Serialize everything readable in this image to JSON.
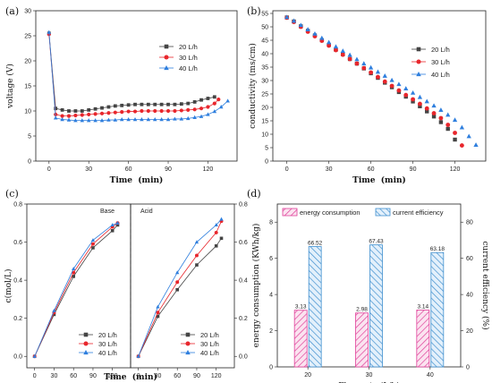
{
  "panels": {
    "a": "(a)",
    "b": "(b)",
    "c": "(c)",
    "d": "(d)"
  },
  "colors": {
    "s20": "#444444",
    "s30": "#e8262c",
    "s40": "#2f7fde",
    "bar_energy": "#e0409a",
    "bar_current": "#3f8fcf"
  },
  "chart_data": [
    {
      "id": "a",
      "type": "line",
      "xlabel": "Time  (min)",
      "ylabel": "voltage (V)",
      "xlim": [
        -10,
        142
      ],
      "ylim": [
        0,
        30
      ],
      "xticks": [
        "0",
        "30",
        "60",
        "90",
        "120"
      ],
      "yticks": [
        "0",
        "5",
        "10",
        "15",
        "20",
        "25",
        "30"
      ],
      "legend": "right",
      "series": [
        {
          "name": "20 L/h",
          "marker": "square",
          "x": [
            0,
            5,
            10,
            15,
            20,
            25,
            30,
            35,
            40,
            45,
            50,
            55,
            60,
            65,
            70,
            75,
            80,
            85,
            90,
            95,
            100,
            105,
            110,
            115,
            120,
            125
          ],
          "y": [
            25.5,
            10.5,
            10.2,
            10.0,
            10.0,
            10.0,
            10.2,
            10.4,
            10.6,
            10.8,
            11.0,
            11.1,
            11.2,
            11.3,
            11.3,
            11.3,
            11.3,
            11.3,
            11.3,
            11.3,
            11.4,
            11.5,
            11.8,
            12.2,
            12.5,
            12.8
          ]
        },
        {
          "name": "30 L/h",
          "marker": "circle",
          "x": [
            0,
            5,
            10,
            15,
            20,
            25,
            30,
            35,
            40,
            45,
            50,
            55,
            60,
            65,
            70,
            75,
            80,
            85,
            90,
            95,
            100,
            105,
            110,
            115,
            120,
            125,
            128
          ],
          "y": [
            25.3,
            9.3,
            9.0,
            9.0,
            9.1,
            9.2,
            9.3,
            9.4,
            9.5,
            9.6,
            9.7,
            9.8,
            9.9,
            9.9,
            10.0,
            10.0,
            10.0,
            10.0,
            10.0,
            10.0,
            10.1,
            10.2,
            10.3,
            10.5,
            10.8,
            11.5,
            12.3
          ]
        },
        {
          "name": "40 L/h",
          "marker": "triangle",
          "x": [
            0,
            5,
            10,
            15,
            20,
            25,
            30,
            35,
            40,
            45,
            50,
            55,
            60,
            65,
            70,
            75,
            80,
            85,
            90,
            95,
            100,
            105,
            110,
            115,
            120,
            125,
            130,
            135
          ],
          "y": [
            25.7,
            8.6,
            8.3,
            8.2,
            8.1,
            8.1,
            8.1,
            8.1,
            8.1,
            8.2,
            8.2,
            8.3,
            8.3,
            8.3,
            8.3,
            8.3,
            8.3,
            8.3,
            8.3,
            8.4,
            8.4,
            8.5,
            8.7,
            8.9,
            9.3,
            9.9,
            10.8,
            12.0
          ]
        }
      ]
    },
    {
      "id": "b",
      "type": "scatter",
      "xlabel": "Time  (min)",
      "ylabel": "conductivity (ms/cm)",
      "xlim": [
        -10,
        142
      ],
      "ylim": [
        0,
        56
      ],
      "xticks": [
        "0",
        "30",
        "60",
        "90",
        "120"
      ],
      "yticks": [
        "0",
        "5",
        "10",
        "15",
        "20",
        "25",
        "30",
        "35",
        "40",
        "45",
        "50",
        "55"
      ],
      "legend": "top-right",
      "series": [
        {
          "name": "20 L/h",
          "marker": "square",
          "x": [
            0,
            5,
            10,
            15,
            20,
            25,
            30,
            35,
            40,
            45,
            50,
            55,
            60,
            65,
            70,
            75,
            80,
            85,
            90,
            95,
            100,
            105,
            110,
            115,
            120
          ],
          "y": [
            53.5,
            52.0,
            50.2,
            48.5,
            46.8,
            45.0,
            43.3,
            41.5,
            39.8,
            38.0,
            36.3,
            34.5,
            32.7,
            31.0,
            29.2,
            27.5,
            25.7,
            24.0,
            22.2,
            20.4,
            18.5,
            16.6,
            14.5,
            12.0,
            8.0
          ]
        },
        {
          "name": "30 L/h",
          "marker": "circle",
          "x": [
            0,
            5,
            10,
            15,
            20,
            25,
            30,
            35,
            40,
            45,
            50,
            55,
            60,
            65,
            70,
            75,
            80,
            85,
            90,
            95,
            100,
            105,
            110,
            115,
            120,
            125
          ],
          "y": [
            53.4,
            51.8,
            50.0,
            48.2,
            46.5,
            44.8,
            43.0,
            41.3,
            39.6,
            38.0,
            36.3,
            34.6,
            33.0,
            31.3,
            29.6,
            28.0,
            26.3,
            24.6,
            23.0,
            21.3,
            19.6,
            17.8,
            16.0,
            13.5,
            10.5,
            5.8
          ]
        },
        {
          "name": "40 L/h",
          "marker": "triangle",
          "x": [
            0,
            5,
            10,
            15,
            20,
            25,
            30,
            35,
            40,
            45,
            50,
            55,
            60,
            65,
            70,
            75,
            80,
            85,
            90,
            95,
            100,
            105,
            110,
            115,
            120,
            125,
            130,
            135
          ],
          "y": [
            53.6,
            52.2,
            50.6,
            49.0,
            47.4,
            45.8,
            44.2,
            42.6,
            41.0,
            39.5,
            37.9,
            36.3,
            34.8,
            33.2,
            31.7,
            30.1,
            28.6,
            27.0,
            25.4,
            23.8,
            22.2,
            20.6,
            19.0,
            17.2,
            15.3,
            12.5,
            9.2,
            6.0
          ]
        }
      ]
    },
    {
      "id": "c",
      "type": "line",
      "xlabel": "Time  (min)",
      "ylabel": "c(mol/L)",
      "left": {
        "title": "Base",
        "xlim": [
          -12,
          148
        ],
        "ylim": [
          -0.06,
          0.8
        ],
        "xticks": [
          "0",
          "30",
          "60",
          "90",
          "120"
        ],
        "yticks": [
          "0.0",
          "0.2",
          "0.4",
          "0.6",
          "0.8"
        ],
        "series": [
          {
            "name": "20 L/h",
            "marker": "square",
            "x": [
              0,
              30,
              60,
              90,
              120,
              128
            ],
            "y": [
              0.0,
              0.22,
              0.42,
              0.57,
              0.66,
              0.69
            ]
          },
          {
            "name": "30 L/h",
            "marker": "circle",
            "x": [
              0,
              30,
              60,
              90,
              120,
              128
            ],
            "y": [
              0.0,
              0.23,
              0.44,
              0.59,
              0.68,
              0.7
            ]
          },
          {
            "name": "40 L/h",
            "marker": "triangle",
            "x": [
              0,
              30,
              60,
              90,
              120,
              128
            ],
            "y": [
              0.0,
              0.24,
              0.46,
              0.61,
              0.69,
              0.7
            ]
          }
        ]
      },
      "right": {
        "title": "Acid",
        "xlim": [
          -12,
          148
        ],
        "ylim": [
          -0.06,
          0.8
        ],
        "xticks": [
          "0",
          "30",
          "60",
          "90",
          "120"
        ],
        "yticks": [
          "0.0",
          "0.2",
          "0.4",
          "0.6",
          "0.8"
        ],
        "series": [
          {
            "name": "20 L/h",
            "marker": "square",
            "x": [
              0,
              30,
              60,
              90,
              120,
              128
            ],
            "y": [
              0.0,
              0.21,
              0.35,
              0.48,
              0.58,
              0.62
            ]
          },
          {
            "name": "30 L/h",
            "marker": "circle",
            "x": [
              0,
              30,
              60,
              90,
              120,
              128
            ],
            "y": [
              0.0,
              0.23,
              0.39,
              0.53,
              0.65,
              0.71
            ]
          },
          {
            "name": "40 L/h",
            "marker": "triangle",
            "x": [
              0,
              30,
              60,
              90,
              120,
              128
            ],
            "y": [
              0.0,
              0.26,
              0.44,
              0.6,
              0.69,
              0.72
            ]
          }
        ]
      }
    },
    {
      "id": "d",
      "type": "bar",
      "xlabel": "Flow rate (L/h)",
      "ylabel": "energy consumption (KWh/kg)",
      "ylabel_right": "current efficiency (%)",
      "categories": [
        "20",
        "30",
        "40"
      ],
      "ylim": [
        0,
        9
      ],
      "ylim_right": [
        0,
        90
      ],
      "yticks": [
        "0",
        "2",
        "4",
        "6",
        "8"
      ],
      "yticks_right": [
        "0",
        "20",
        "40",
        "60",
        "80"
      ],
      "legend": "top",
      "series": [
        {
          "name": "energy consumption",
          "axis": "left",
          "values": [
            3.13,
            2.98,
            3.14
          ],
          "labels": [
            "3.13",
            "2.98",
            "3.14"
          ]
        },
        {
          "name": "current efficiency",
          "axis": "right",
          "values": [
            66.52,
            67.43,
            63.18
          ],
          "labels": [
            "66.52",
            "67.43",
            "63.18"
          ]
        }
      ]
    }
  ]
}
